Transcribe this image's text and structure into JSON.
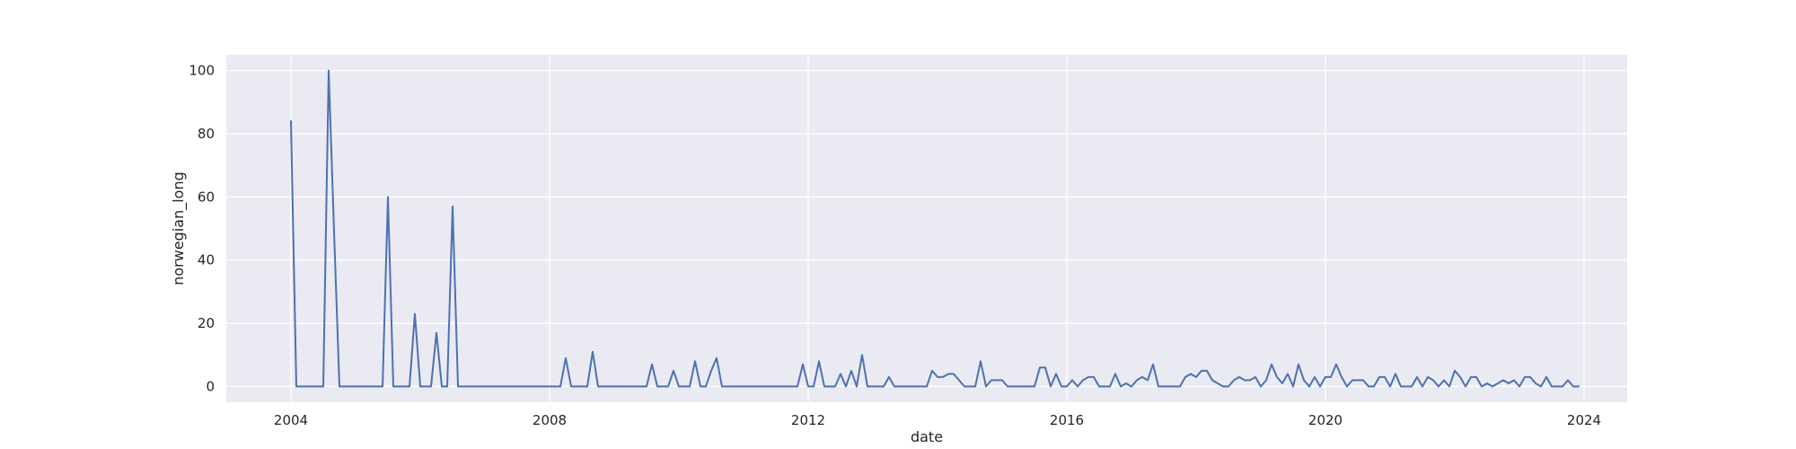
{
  "chart_data": {
    "type": "line",
    "title": "",
    "xlabel": "date",
    "ylabel": "norwegian_long",
    "xlim": [
      "2003-01-01",
      "2024-09-01"
    ],
    "ylim": [
      -5,
      105
    ],
    "grid": true,
    "legend": "none",
    "x_ticks": [
      "2004",
      "2008",
      "2012",
      "2016",
      "2020",
      "2024"
    ],
    "y_ticks": [
      0,
      20,
      40,
      60,
      80,
      100
    ],
    "colors": {
      "background": "#eaeaf2",
      "grid": "#ffffff",
      "line": "#4c72b0",
      "text": "#262626"
    },
    "x_start": "2004-01",
    "x_end": "2023-10",
    "x_step": "1 month",
    "series": [
      {
        "values": [
          84,
          0,
          0,
          0,
          0,
          0,
          0,
          100,
          49,
          0,
          0,
          0,
          0,
          0,
          0,
          0,
          0,
          0,
          60,
          0,
          0,
          0,
          0,
          23,
          0,
          0,
          0,
          17,
          0,
          0,
          57,
          0,
          0,
          0,
          0,
          0,
          0,
          0,
          0,
          0,
          0,
          0,
          0,
          0,
          0,
          0,
          0,
          0,
          0,
          0,
          0,
          9,
          0,
          0,
          0,
          0,
          11,
          0,
          0,
          0,
          0,
          0,
          0,
          0,
          0,
          0,
          0,
          7,
          0,
          0,
          0,
          5,
          0,
          0,
          0,
          8,
          0,
          0,
          5,
          9,
          0,
          0,
          0,
          0,
          0,
          0,
          0,
          0,
          0,
          0,
          0,
          0,
          0,
          0,
          0,
          7,
          0,
          0,
          8,
          0,
          0,
          0,
          4,
          0,
          5,
          0,
          10,
          0,
          0,
          0,
          0,
          3,
          0,
          0,
          0,
          0,
          0,
          0,
          0,
          5,
          3,
          3,
          4,
          4,
          2,
          0,
          0,
          0,
          8,
          0,
          2,
          2,
          2,
          0,
          0,
          0,
          0,
          0,
          0,
          6,
          6,
          0,
          4,
          0,
          0,
          2,
          0,
          2,
          3,
          3,
          0,
          0,
          0,
          4,
          0,
          1,
          0,
          2,
          3,
          2,
          7,
          0,
          0,
          0,
          0,
          0,
          3,
          4,
          3,
          5,
          5,
          2,
          1,
          0,
          0,
          2,
          3,
          2,
          2,
          3,
          0,
          2,
          7,
          3,
          1,
          4,
          0,
          7,
          2,
          0,
          3,
          0,
          3,
          3,
          7,
          3,
          0,
          2,
          2,
          2,
          0,
          0,
          3,
          3,
          0,
          4,
          0,
          0,
          0,
          3,
          0,
          3,
          2,
          0,
          2,
          0,
          5,
          3,
          0,
          3,
          3,
          0,
          1,
          0,
          1,
          2,
          1,
          2,
          0,
          3,
          3,
          1,
          0,
          3,
          0,
          0,
          0,
          2,
          0,
          0
        ]
      }
    ]
  }
}
